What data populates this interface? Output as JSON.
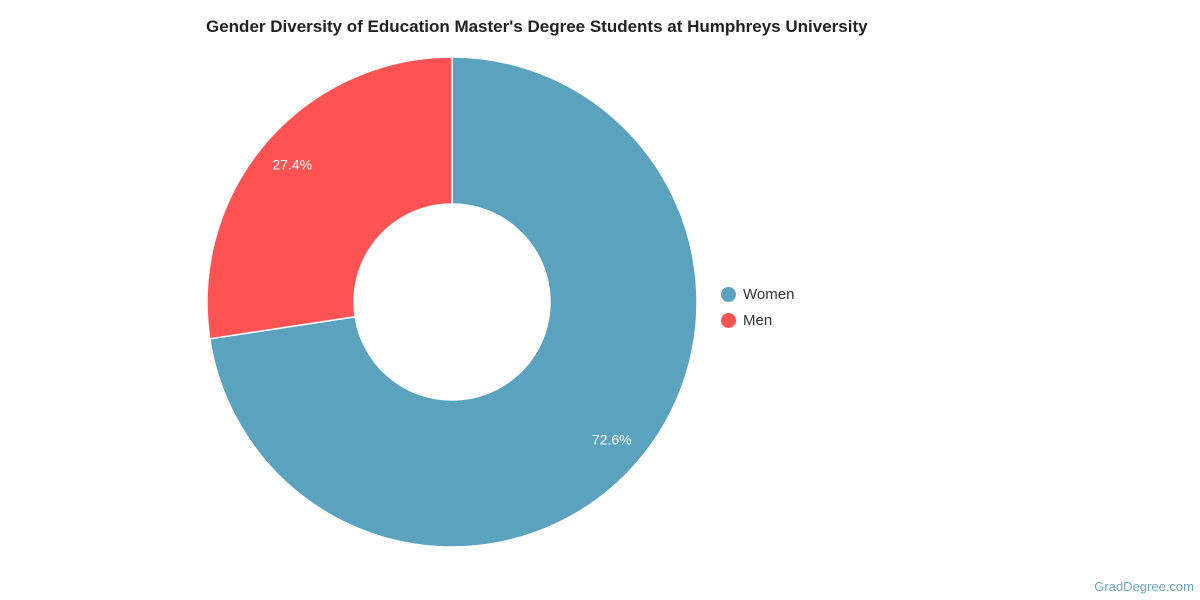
{
  "chart_data": {
    "type": "pie",
    "variant": "donut",
    "title": "Gender Diversity of Education Master's Degree Students at Humphreys University",
    "series": [
      {
        "name": "Women",
        "value": 72.6,
        "label": "72.6%",
        "color": "#5ba2bf"
      },
      {
        "name": "Men",
        "value": 27.4,
        "label": "27.4%",
        "color": "#ff5353"
      }
    ],
    "legend_position": "right"
  },
  "watermark": "GradDegree.com"
}
